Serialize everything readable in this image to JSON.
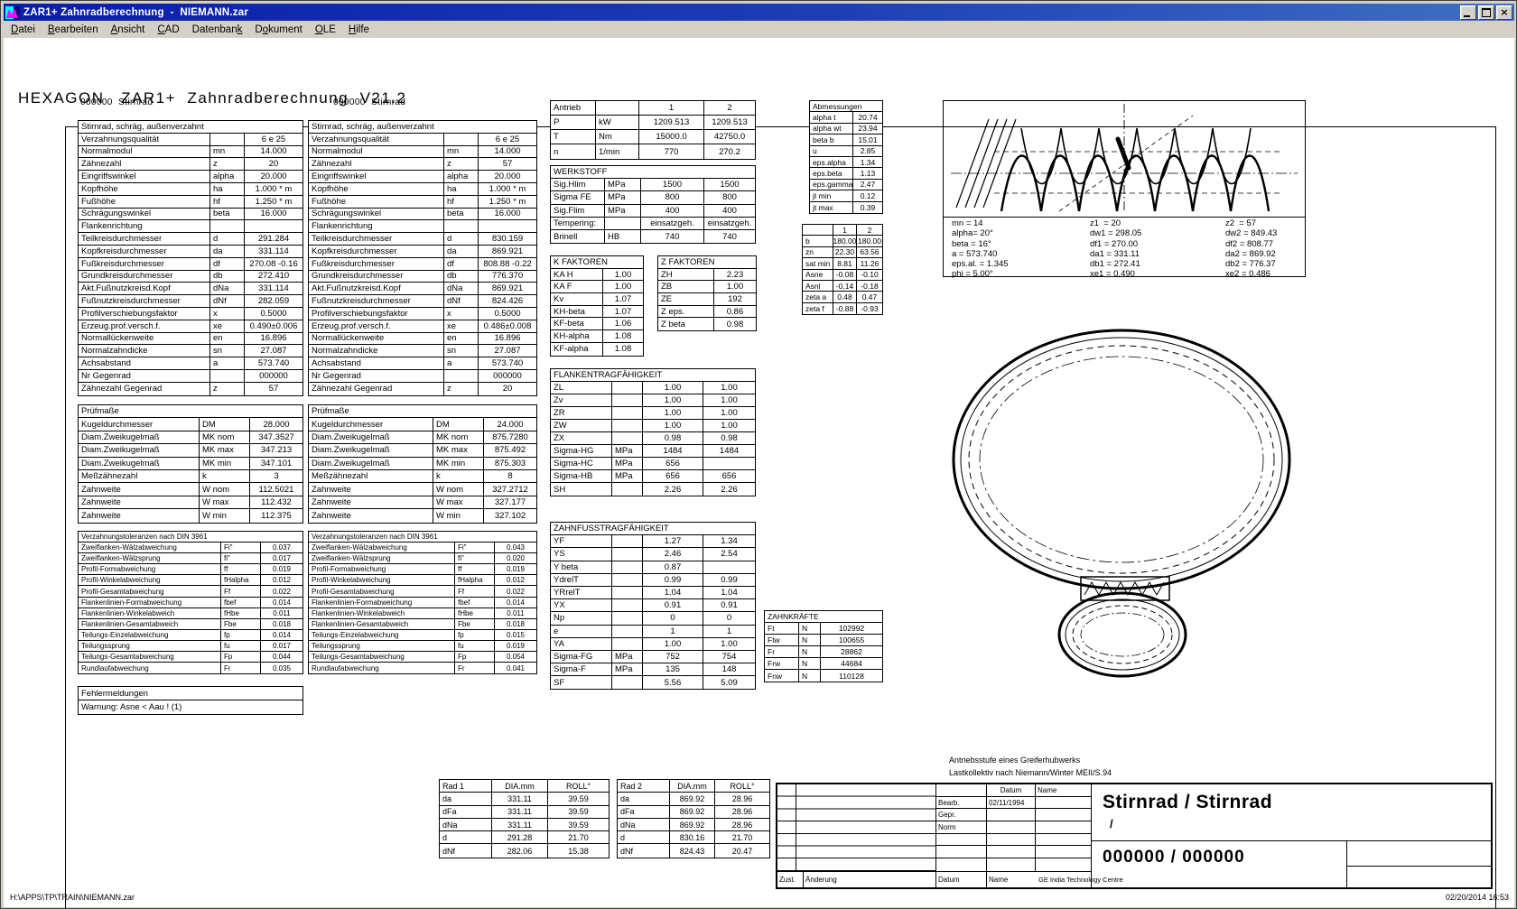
{
  "window": {
    "title": "ZAR1+ Zahnradberechnung  -  NIEMANN.zar"
  },
  "menu": {
    "items": [
      {
        "label": "Datei",
        "u": 0
      },
      {
        "label": "Bearbeiten",
        "u": 0
      },
      {
        "label": "Ansicht",
        "u": 0
      },
      {
        "label": "CAD",
        "u": 0
      },
      {
        "label": "Datenbank",
        "u": 8
      },
      {
        "label": "Dokument",
        "u": 1
      },
      {
        "label": "OLE",
        "u": 0
      },
      {
        "label": "Hilfe",
        "u": 0
      }
    ]
  },
  "header": {
    "title": "HEXAGON   ZAR1+  Zahnradberechnung  V21.2"
  },
  "gear1_label": "000000  Stirnrad",
  "gear2_label": "000000  Stirnrad",
  "gear1": {
    "title": "Stirnrad, schräg, außenverzahnt",
    "rows": [
      [
        "Verzahnungsqualität",
        "",
        "6 e 25"
      ],
      [
        "Normalmodul",
        "mn",
        "14.000"
      ],
      [
        "Zähnezahl",
        "z",
        "20"
      ],
      [
        "Eingriffswinkel",
        "alpha",
        "20.000"
      ],
      [
        "Kopfhöhe",
        "ha",
        "1.000 * m"
      ],
      [
        "Fußhöhe",
        "hf",
        "1.250 * m"
      ],
      [
        "Schrägungswinkel",
        "beta",
        "16.000"
      ],
      [
        "Flankenrichtung",
        "",
        ""
      ],
      [
        "Teilkreisdurchmesser",
        "d",
        "291.284"
      ],
      [
        "Kopfkreisdurchmesser",
        "da",
        "331.114"
      ],
      [
        "Fußkreisdurchmesser",
        "df",
        "270.08 -0.16"
      ],
      [
        "Grundkreisdurchmesser",
        "db",
        "272.410"
      ],
      [
        "Akt.Fußnutzkreisd.Kopf",
        "dNa",
        "331.114"
      ],
      [
        "Fußnutzkreisdurchmesser",
        "dNf",
        "282.059"
      ],
      [
        "Profilverschiebungsfaktor",
        "x",
        "0.5000"
      ],
      [
        "Erzeug.prof.versch.f.",
        "xe",
        "0.490±0.006"
      ],
      [
        "Normallückenweite",
        "en",
        "16.896"
      ],
      [
        "Normalzahndicke",
        "sn",
        "27.087"
      ],
      [
        "Achsabstand",
        "a",
        "573.740"
      ],
      [
        "Nr Gegenrad",
        "",
        "000000"
      ],
      [
        "Zähnezahl Gegenrad",
        "z",
        "57"
      ]
    ]
  },
  "gear2": {
    "title": "Stirnrad, schräg, außenverzahnt",
    "rows": [
      [
        "Verzahnungsqualität",
        "",
        "6 e 25"
      ],
      [
        "Normalmodul",
        "mn",
        "14.000"
      ],
      [
        "Zähnezahl",
        "z",
        "57"
      ],
      [
        "Eingriffswinkel",
        "alpha",
        "20.000"
      ],
      [
        "Kopfhöhe",
        "ha",
        "1.000 * m"
      ],
      [
        "Fußhöhe",
        "hf",
        "1.250 * m"
      ],
      [
        "Schrägungswinkel",
        "beta",
        "16.000"
      ],
      [
        "Flankenrichtung",
        "",
        ""
      ],
      [
        "Teilkreisdurchmesser",
        "d",
        "830.159"
      ],
      [
        "Kopfkreisdurchmesser",
        "da",
        "869.921"
      ],
      [
        "Fußkreisdurchmesser",
        "df",
        "808.88 -0.22"
      ],
      [
        "Grundkreisdurchmesser",
        "db",
        "776.370"
      ],
      [
        "Akt.Fußnutzkreisd.Kopf",
        "dNa",
        "869.921"
      ],
      [
        "Fußnutzkreisdurchmesser",
        "dNf",
        "824.426"
      ],
      [
        "Profilverschiebungsfaktor",
        "x",
        "0.5000"
      ],
      [
        "Erzeug.prof.versch.f.",
        "xe",
        "0.486±0.008"
      ],
      [
        "Normallückenweite",
        "en",
        "16.896"
      ],
      [
        "Normalzahndicke",
        "sn",
        "27.087"
      ],
      [
        "Achsabstand",
        "a",
        "573.740"
      ],
      [
        "Nr Gegenrad",
        "",
        "000000"
      ],
      [
        "Zähnezahl Gegenrad",
        "z",
        "20"
      ]
    ]
  },
  "pruef1": {
    "title": "Prüfmaße",
    "rows": [
      [
        "Kugeldurchmesser",
        "DM",
        "28.000"
      ],
      [
        "Diam.Zweikugelmaß",
        "MK nom",
        "347.3527"
      ],
      [
        "Diam.Zweikugelmaß",
        "MK max",
        "347.213"
      ],
      [
        "Diam.Zweikugelmaß",
        "MK min",
        "347.101"
      ],
      [
        "Meßzähnezahl",
        "k",
        "3"
      ],
      [
        "Zahnweite",
        "W nom",
        "112.5021"
      ],
      [
        "Zahnweite",
        "W max",
        "112.432"
      ],
      [
        "Zahnweite",
        "W min",
        "112.375"
      ]
    ]
  },
  "pruef2": {
    "title": "Prüfmaße",
    "rows": [
      [
        "Kugeldurchmesser",
        "DM",
        "24.000"
      ],
      [
        "Diam.Zweikugelmaß",
        "MK nom",
        "875.7280"
      ],
      [
        "Diam.Zweikugelmaß",
        "MK max",
        "875.492"
      ],
      [
        "Diam.Zweikugelmaß",
        "MK min",
        "875.303"
      ],
      [
        "Meßzähnezahl",
        "k",
        "8"
      ],
      [
        "Zahnweite",
        "W nom",
        "327.2712"
      ],
      [
        "Zahnweite",
        "W max",
        "327.177"
      ],
      [
        "Zahnweite",
        "W min",
        "327.102"
      ]
    ]
  },
  "tol1": {
    "title": "Verzahnungstoleranzen nach DIN 3961",
    "rows": [
      [
        "Zweiflanken-Wälzabweichung",
        "Fi\"",
        "0.037"
      ],
      [
        "Zweiflanken-Wälzsprung",
        "fi\"",
        "0.017"
      ],
      [
        "Profil-Formabweichung",
        "ff",
        "0.019"
      ],
      [
        "Profil-Winkelabweichung",
        "fHalpha",
        "0.012"
      ],
      [
        "Profil-Gesamtabweichung",
        "Ff",
        "0.022"
      ],
      [
        "Flankenlinien-Formabweichung",
        "fbef",
        "0.014"
      ],
      [
        "Flankenlinien-Winkelabweich",
        "fHbe",
        "0.011"
      ],
      [
        "Flankenlinien-Gesamtabweich",
        "Fbe",
        "0.018"
      ],
      [
        "Teilungs-Einzelabweichung",
        "fp",
        "0.014"
      ],
      [
        "Teilungssprung",
        "fu",
        "0.017"
      ],
      [
        "Teilungs-Gesamtabweichung",
        "Fp",
        "0.044"
      ],
      [
        "Rundlaufabweichung",
        "Fr",
        "0.035"
      ]
    ]
  },
  "tol2": {
    "title": "Verzahnungstoleranzen nach DIN 3961",
    "rows": [
      [
        "Zweiflanken-Wälzabweichung",
        "Fi\"",
        "0.043"
      ],
      [
        "Zweiflanken-Wälzsprung",
        "fi\"",
        "0.020"
      ],
      [
        "Profil-Formabweichung",
        "ff",
        "0.019"
      ],
      [
        "Profil-Winkelabweichung",
        "fHalpha",
        "0.012"
      ],
      [
        "Profil-Gesamtabweichung",
        "Ff",
        "0.022"
      ],
      [
        "Flankenlinien-Formabweichung",
        "fbef",
        "0.014"
      ],
      [
        "Flankenlinien-Winkelabweich",
        "fHbe",
        "0.011"
      ],
      [
        "Flankenlinien-Gesamtabweich",
        "Fbe",
        "0.018"
      ],
      [
        "Teilungs-Einzelabweichung",
        "fp",
        "0.015"
      ],
      [
        "Teilungssprung",
        "fu",
        "0.019"
      ],
      [
        "Teilungs-Gesamtabweichung",
        "Fp",
        "0.054"
      ],
      [
        "Rundlaufabweichung",
        "Fr",
        "0.041"
      ]
    ]
  },
  "fehler": {
    "title": "Fehlermeldungen",
    "rows": [
      [
        "Warnung: Asne < Aau !  (1)"
      ]
    ]
  },
  "antrieb": {
    "rows": [
      [
        "Antrieb",
        "",
        "1",
        "2"
      ],
      [
        "P",
        "kW",
        "1209.513",
        "1209.513"
      ],
      [
        "T",
        "Nm",
        "15000.0",
        "42750.0"
      ],
      [
        "n",
        "1/min",
        "770",
        "270.2"
      ]
    ]
  },
  "werkstoff": {
    "title": "WERKSTOFF",
    "rows": [
      [
        "Sig.Hlim",
        "MPa",
        "1500",
        "1500"
      ],
      [
        "Sigma FE",
        "MPa",
        "800",
        "800"
      ],
      [
        "Sig.Flim",
        "MPa",
        "400",
        "400"
      ],
      [
        "Tempering:",
        "",
        "einsatzgeh.",
        "einsatzgeh."
      ],
      [
        "Brinell",
        "HB",
        "740",
        "740"
      ]
    ]
  },
  "kfakt": {
    "title": "K FAKTOREN",
    "rows": [
      [
        "KA H",
        "1.00"
      ],
      [
        "KA F",
        "1.00"
      ],
      [
        "Kv",
        "1.07"
      ],
      [
        "KH-beta",
        "1.07"
      ],
      [
        "KF-beta",
        "1.06"
      ],
      [
        "KH-alpha",
        "1.08"
      ],
      [
        "KF-alpha",
        "1.08"
      ]
    ]
  },
  "zfakt": {
    "title": "Z FAKTOREN",
    "rows": [
      [
        "ZH",
        "2.23"
      ],
      [
        "ZB",
        "1.00"
      ],
      [
        "ZE",
        "192"
      ],
      [
        "Z eps.",
        "0.86"
      ],
      [
        "Z beta",
        "0.98"
      ]
    ]
  },
  "flanken": {
    "title": "FLANKENTRAGFÄHIGKEIT",
    "rows": [
      [
        "ZL",
        "",
        "1.00",
        "1.00"
      ],
      [
        "Zv",
        "",
        "1.00",
        "1.00"
      ],
      [
        "ZR",
        "",
        "1.00",
        "1.00"
      ],
      [
        "ZW",
        "",
        "1.00",
        "1.00"
      ],
      [
        "ZX",
        "",
        "0.98",
        "0.98"
      ],
      [
        "Sigma-HG",
        "MPa",
        "1484",
        "1484"
      ],
      [
        "Sigma-HC",
        "MPa",
        "656",
        ""
      ],
      [
        "Sigma-HB",
        "MPa",
        "656",
        "656"
      ],
      [
        "SH",
        "",
        "2.26",
        "2.26"
      ]
    ]
  },
  "zahnfuss": {
    "title": "ZAHNFUSSTRAGFÄHIGKEIT",
    "rows": [
      [
        "YF",
        "",
        "1.27",
        "1.34"
      ],
      [
        "YS",
        "",
        "2.46",
        "2.54"
      ],
      [
        "Y beta",
        "",
        "0.87",
        ""
      ],
      [
        "YdrelT",
        "",
        "0.99",
        "0.99"
      ],
      [
        "YRrelT",
        "",
        "1.04",
        "1.04"
      ],
      [
        "YX",
        "",
        "0.91",
        "0.91"
      ],
      [
        "Np",
        "",
        "0",
        "0"
      ],
      [
        "e",
        "",
        "1",
        "1"
      ],
      [
        "YA",
        "",
        "1.00",
        "1.00"
      ],
      [
        "Sigma-FG",
        "MPa",
        "752",
        "754"
      ],
      [
        "Sigma-F",
        "MPa",
        "135",
        "148"
      ],
      [
        "SF",
        "",
        "5.56",
        "5.09"
      ]
    ]
  },
  "abmess": {
    "title": "Abmessungen",
    "rows": [
      [
        "alpha t",
        "20.74"
      ],
      [
        "alpha wt",
        "23.94"
      ],
      [
        "beta b",
        "15.01"
      ],
      [
        "u",
        "2.85"
      ],
      [
        "eps.alpha",
        "1.34"
      ],
      [
        "eps.beta",
        "1.13"
      ],
      [
        "eps.gamma",
        "2.47"
      ],
      [
        "jt min",
        "0.12"
      ],
      [
        "jt max",
        "0.39"
      ]
    ]
  },
  "abm2": {
    "rows": [
      [
        "",
        "1",
        "2"
      ],
      [
        "b",
        "180.00",
        "180.00"
      ],
      [
        "zn",
        "22.30",
        "63.56"
      ],
      [
        "sat min",
        "8.81",
        "11.26"
      ],
      [
        "Asne",
        "-0.08",
        "-0.10"
      ],
      [
        "Asnl",
        "-0.14",
        "-0.18"
      ],
      [
        "zeta a",
        "0.48",
        "0.47"
      ],
      [
        "zeta f",
        "-0.88",
        "-0.93"
      ]
    ]
  },
  "kraefte": {
    "title": "ZAHNKRÄFTE",
    "rows": [
      [
        "Ft",
        "N",
        "102992"
      ],
      [
        "Ftw",
        "N",
        "100655"
      ],
      [
        "Fr",
        "N",
        "28862"
      ],
      [
        "Frw",
        "N",
        "44684"
      ],
      [
        "Fnw",
        "N",
        "110128"
      ]
    ]
  },
  "rad1": {
    "rows": [
      [
        "Rad 1",
        "DIA.mm",
        "ROLL°"
      ],
      [
        "da",
        "331.11",
        "39.59"
      ],
      [
        "dFa",
        "331.11",
        "39.59"
      ],
      [
        "dNa",
        "331.11",
        "39.59"
      ],
      [
        "d",
        "291.28",
        "21.70"
      ],
      [
        "dNf",
        "282.06",
        "15.38"
      ]
    ]
  },
  "rad2": {
    "rows": [
      [
        "Rad 2",
        "DIA.mm",
        "ROLL°"
      ],
      [
        "da",
        "869.92",
        "28.96"
      ],
      [
        "dFa",
        "869.92",
        "28.96"
      ],
      [
        "dNa",
        "869.92",
        "28.96"
      ],
      [
        "d",
        "830.16",
        "21.70"
      ],
      [
        "dNf",
        "824.43",
        "20.47"
      ]
    ]
  },
  "drawing": {
    "col1": [
      "mn = 14",
      "alpha= 20°",
      "beta = 16°",
      "a = 573.740",
      "eps.al. = 1.345",
      "phi = 5.00°"
    ],
    "col2": [
      "z1  = 20",
      "dw1 = 298.05",
      "df1 = 270.00",
      "da1 = 331.11",
      "db1 = 272.41",
      "xe1 = 0.490"
    ],
    "col3": [
      "z2  = 57",
      "dw2 = 849.43",
      "df2 = 808.77",
      "da2 = 869.92",
      "db2 = 776.37",
      "xe2 = 0.486"
    ]
  },
  "titleblock": {
    "annotation1": "Antriebsstufe eines Greiferhubwerks",
    "annotation2": "Lastkollektiv nach Niemann/Winter MEII/S.94",
    "datum_label": "Datum",
    "name_label": "Name",
    "bearb_label": "Bearb.",
    "bearb_datum": "02/11/1994",
    "gepr_label": "Gepr.",
    "norm_label": "Norm",
    "title_line1": "Stirnrad / Stirnrad",
    "title_line2": "/",
    "number": "000000 / 000000",
    "zust_label": "Zust.",
    "aenderung_label": "Änderung",
    "datum2_label": "Datum",
    "name2_label": "Name",
    "company": "GE India Technology Centre"
  },
  "footer": {
    "path": "H:\\APPS\\TP\\TRAIN\\NIEMANN.zar",
    "datetime": "02/20/2014 16:53"
  }
}
